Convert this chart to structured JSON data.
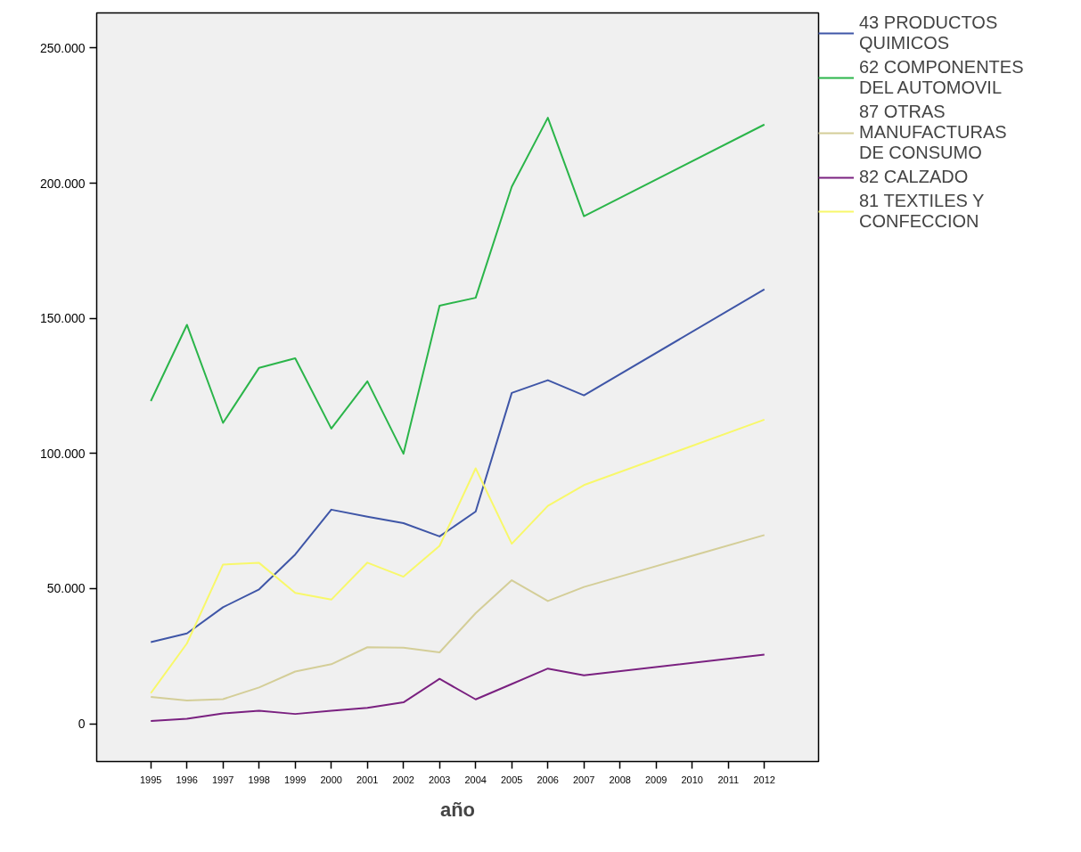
{
  "chart_data": {
    "type": "line",
    "xlabel": "año",
    "x": [
      1995,
      1996,
      1997,
      1998,
      1999,
      2000,
      2001,
      2002,
      2003,
      2004,
      2005,
      2006,
      2007,
      2012
    ],
    "xlim": [
      1993.5,
      2013.5
    ],
    "xticks": [
      1995,
      1996,
      1997,
      1998,
      1999,
      2000,
      2001,
      2002,
      2003,
      2004,
      2005,
      2006,
      2007,
      2008,
      2009,
      2010,
      2011,
      2012
    ],
    "ylim": [
      -14000,
      263000
    ],
    "yticks": [
      {
        "value": 0,
        "label": "0"
      },
      {
        "value": 50000,
        "label": "50.000"
      },
      {
        "value": 100000,
        "label": "100.000"
      },
      {
        "value": 150000,
        "label": "150.000"
      },
      {
        "value": 200000,
        "label": "200.000"
      },
      {
        "value": 250000,
        "label": "250.000"
      }
    ],
    "series": [
      {
        "name": "43 PRODUCTOS QUIMICOS",
        "color": "#3f56a7",
        "values": [
          30200,
          33400,
          43100,
          49700,
          62600,
          79200,
          76600,
          74200,
          69300,
          78500,
          122400,
          127100,
          121500,
          160700
        ]
      },
      {
        "name": "62 COMPONENTES DEL AUTOMOVIL",
        "color": "#2bb54a",
        "values": [
          119400,
          147600,
          111300,
          131700,
          135200,
          109200,
          126700,
          99900,
          154700,
          157600,
          198700,
          224200,
          187800,
          221700
        ]
      },
      {
        "name": "87 OTRAS MANUFACTURAS DE CONSUMO",
        "color": "#d4ce98",
        "values": [
          9900,
          8600,
          9100,
          13400,
          19300,
          22000,
          28300,
          28100,
          26400,
          40900,
          53100,
          45400,
          50600,
          69800
        ]
      },
      {
        "name": "82 CALZADO",
        "color": "#7a2180",
        "values": [
          1000,
          1800,
          3800,
          4800,
          3600,
          4800,
          5900,
          7900,
          16600,
          9000,
          14700,
          20400,
          17900,
          25600
        ]
      },
      {
        "name": "81 TEXTILES Y CONFECCION",
        "color": "#f8f86a",
        "values": [
          11300,
          29700,
          58900,
          59500,
          48400,
          45900,
          59600,
          54400,
          65800,
          94500,
          66600,
          80600,
          88300,
          112500
        ]
      }
    ],
    "legend": "top right",
    "grid": false,
    "marker": "none",
    "line_style": "solid"
  }
}
